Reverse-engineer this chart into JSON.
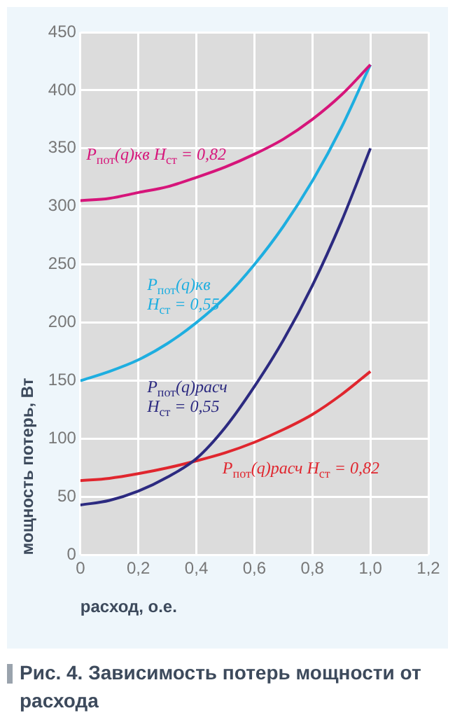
{
  "chart_data": {
    "type": "line",
    "title": "Рис. 4. Зависимость потерь мощности от расхода",
    "xlabel": "расход, о.е.",
    "ylabel": "мощность потерь, Вт",
    "x": [
      0,
      0.1,
      0.2,
      0.3,
      0.4,
      0.5,
      0.6,
      0.7,
      0.8,
      0.9,
      1.0
    ],
    "series": [
      {
        "name": "P$_{пот}$(q)кв H$_{ст}$ = 0,82",
        "color": "#d6157a",
        "values": [
          305,
          307,
          312,
          317,
          325,
          334,
          345,
          358,
          375,
          396,
          422
        ]
      },
      {
        "name": "P$_{пот}$(q)кв\nH$_{ст}$ = 0,55",
        "color": "#1eaee0",
        "values": [
          150,
          158,
          168,
          182,
          200,
          222,
          250,
          283,
          322,
          368,
          422
        ]
      },
      {
        "name": "P$_{пот}$(q)расч\nH$_{ст}$ = 0,55",
        "color": "#2c2a80",
        "values": [
          43,
          47,
          55,
          67,
          83,
          110,
          145,
          185,
          232,
          287,
          350
        ]
      },
      {
        "name": "P$_{пот}$(q)расч H$_{ст}$ = 0,82",
        "color": "#e0262e",
        "values": [
          64,
          66,
          70,
          75,
          81,
          88,
          97,
          108,
          121,
          138,
          158
        ]
      }
    ],
    "xlim": [
      0,
      1.2
    ],
    "xticks": [
      0,
      {
        "value": 0.2,
        "label": "0,2"
      },
      {
        "value": 0.4,
        "label": "0,4"
      },
      {
        "value": 0.6,
        "label": "0,6"
      },
      {
        "value": 0.8,
        "label": "0,8"
      },
      {
        "value": 1,
        "label": "1,0"
      },
      {
        "value": 1.2,
        "label": "1,2"
      }
    ],
    "ylim": [
      0,
      450
    ],
    "yticks": [
      0,
      50,
      100,
      150,
      200,
      250,
      300,
      350,
      400,
      450
    ],
    "grid": true,
    "legend": false,
    "marker": "none",
    "line_style": "solid"
  }
}
